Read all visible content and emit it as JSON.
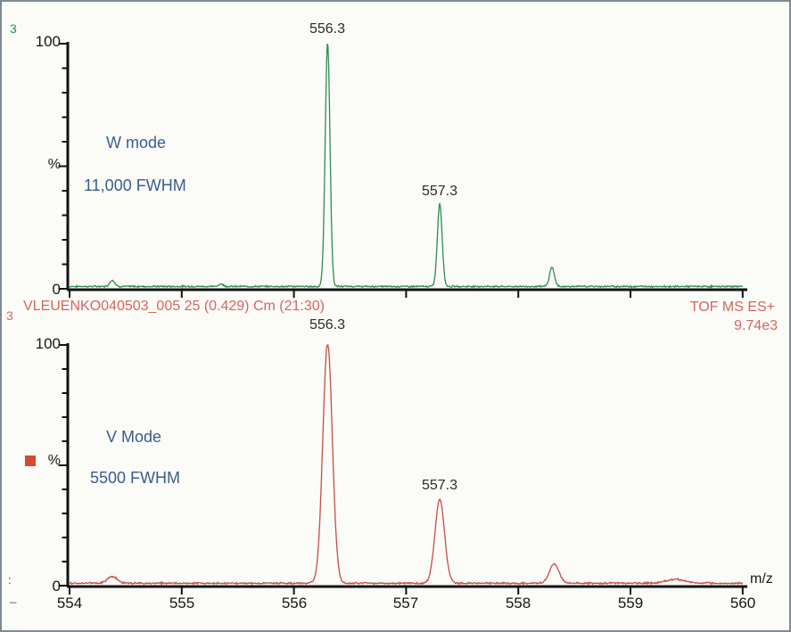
{
  "window": {
    "background": "#fbfbf8",
    "border_color": "#7e8a92"
  },
  "edge_fragments": {
    "top_left": "3",
    "mid_left": "3",
    "bottom_left_colon": ":",
    "bottom_left_underscore": "_"
  },
  "header": {
    "sample_info": "VLEUENKO040503_005 25 (0.429) Cm (21:30)",
    "technique": "TOF MS ES+",
    "base_peak_intensity": "9.74e3",
    "text_color": "#d4675c"
  },
  "colors": {
    "annotation_blue": "#3a5c91",
    "axis_black": "#111111",
    "top_trace_green": "#2f8c51",
    "bottom_trace_red": "#c44f44",
    "legend_square_red": "#d54a30"
  },
  "chart_data": [
    {
      "type": "line",
      "panel": "top",
      "title_annotation": {
        "mode": "W mode",
        "resolution": "11,000 FWHM"
      },
      "color": "#2f8c51",
      "xlim": [
        554,
        560
      ],
      "ylim": [
        0,
        100
      ],
      "ylabel": "%",
      "yticks": [
        "100",
        "0"
      ],
      "xlabel": "m/z",
      "grid": false,
      "peak_fwhm_mz": 0.05,
      "noise_pct": 0.8,
      "peaks": [
        {
          "mz": 554.38,
          "intensity_pct": 2.6,
          "label": ""
        },
        {
          "mz": 555.35,
          "intensity_pct": 1.0,
          "label": ""
        },
        {
          "mz": 556.3,
          "intensity_pct": 100,
          "label": "556.3"
        },
        {
          "mz": 557.3,
          "intensity_pct": 34,
          "label": "557.3"
        },
        {
          "mz": 558.3,
          "intensity_pct": 8,
          "label": ""
        }
      ]
    },
    {
      "type": "line",
      "panel": "bottom",
      "title_annotation": {
        "mode": "V Mode",
        "resolution": "5500 FWHM"
      },
      "color": "#c44f44",
      "xlim": [
        554,
        560
      ],
      "ylim": [
        0,
        100
      ],
      "ylabel": "%",
      "yticks": [
        "100",
        "0"
      ],
      "xticks": [
        "554",
        "555",
        "556",
        "557",
        "558",
        "559",
        "560"
      ],
      "xlabel": "m/z",
      "grid": false,
      "peak_fwhm_mz": 0.1,
      "noise_pct": 0.9,
      "legend_marker": true,
      "peaks": [
        {
          "mz": 554.38,
          "intensity_pct": 2.8,
          "label": ""
        },
        {
          "mz": 556.3,
          "intensity_pct": 100,
          "label": "556.3"
        },
        {
          "mz": 557.3,
          "intensity_pct": 35,
          "label": "557.3"
        },
        {
          "mz": 558.32,
          "intensity_pct": 8,
          "label": ""
        },
        {
          "mz": 559.4,
          "intensity_pct": 1.6,
          "label": "",
          "fwhm_mz": 0.2
        }
      ]
    }
  ]
}
